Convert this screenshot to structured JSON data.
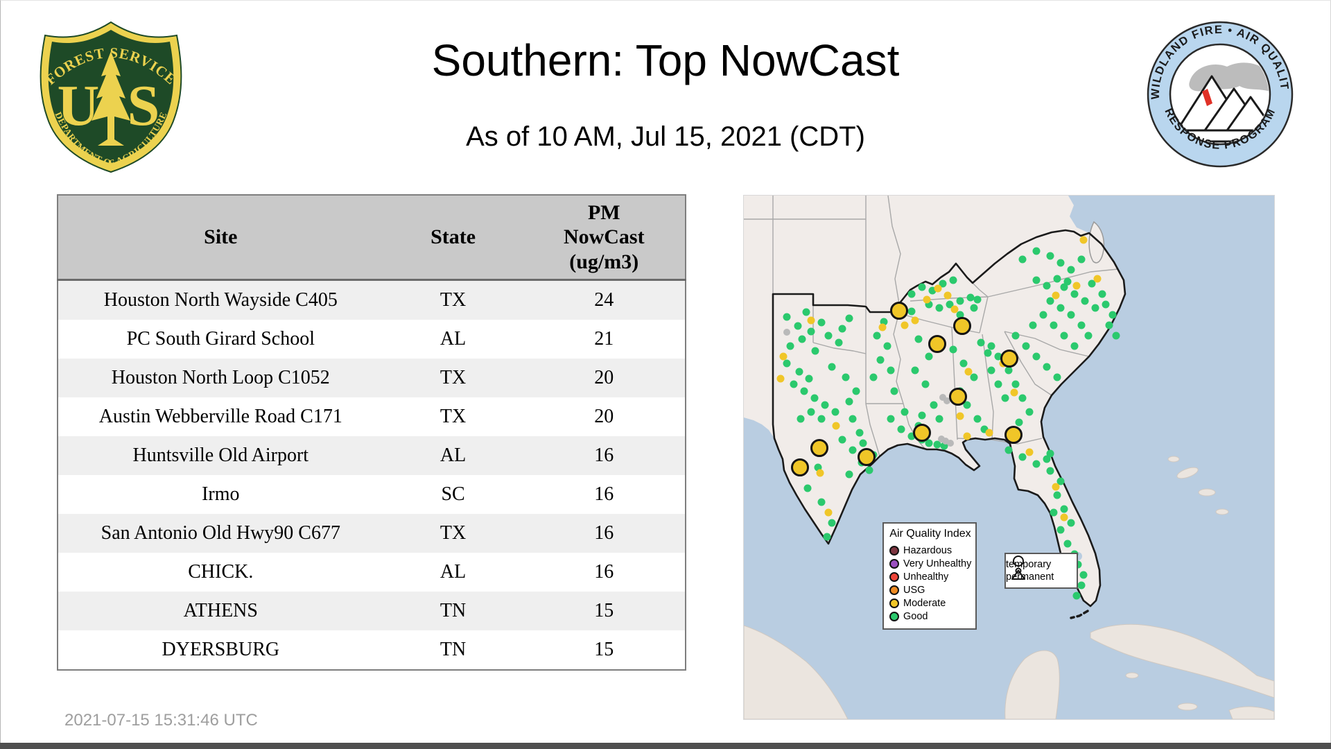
{
  "header": {
    "title": "Southern: Top NowCast",
    "subtitle": "As of 10 AM, Jul 15, 2021 (CDT)",
    "fs_logo": {
      "arc_top": "FOREST SERVICE",
      "letter_left": "U",
      "letter_right": "S",
      "arc_bottom": "DEPARTMENT OF AGRICULTURE",
      "green": "#1e4a27",
      "gold": "#ecd24f"
    },
    "wf_logo": {
      "arc_top": "WILDLAND FIRE • AIR QUALITY",
      "arc_bottom": "RESPONSE PROGRAM",
      "ring_color": "#b9d6ee",
      "flame_color": "#e03127",
      "smoke_color": "#bcbcbc"
    }
  },
  "table": {
    "columns": {
      "site": "Site",
      "state": "State",
      "value": "PM\nNowCast\n(ug/m3)"
    },
    "rows": [
      {
        "site": "Houston North Wayside C405",
        "state": "TX",
        "value": "24"
      },
      {
        "site": "PC South Girard School",
        "state": "AL",
        "value": "21"
      },
      {
        "site": "Houston North Loop C1052",
        "state": "TX",
        "value": "20"
      },
      {
        "site": "Austin Webberville Road C171",
        "state": "TX",
        "value": "20"
      },
      {
        "site": "Huntsville Old Airport",
        "state": "AL",
        "value": "16"
      },
      {
        "site": "Irmo",
        "state": "SC",
        "value": "16"
      },
      {
        "site": "San Antonio Old Hwy90 C677",
        "state": "TX",
        "value": "16"
      },
      {
        "site": "CHICK.",
        "state": "AL",
        "value": "16"
      },
      {
        "site": "ATHENS",
        "state": "TN",
        "value": "15"
      },
      {
        "site": "DYERSBURG",
        "state": "TN",
        "value": "15"
      }
    ]
  },
  "footer": {
    "timestamp": "2021-07-15 15:31:46 UTC"
  },
  "map": {
    "colors": {
      "water": "#b9cde1",
      "land": "#f1ece9",
      "foreign_land": "#ebe5df",
      "state_line": "#a8a8a8",
      "region_line": "#1b1b1b",
      "good": "#2bc96d",
      "moderate": "#f0c628",
      "no_data": "#b9b9b9"
    },
    "legend": {
      "title": "Air Quality Index",
      "items": [
        {
          "label": "Hazardous",
          "color": "#7d3540"
        },
        {
          "label": "Very Unhealthy",
          "color": "#9b4fc0"
        },
        {
          "label": "Unhealthy",
          "color": "#ee4438"
        },
        {
          "label": "USG",
          "color": "#ee8b23"
        },
        {
          "label": "Moderate",
          "color": "#f0c628"
        },
        {
          "label": "Good",
          "color": "#2bc96d"
        }
      ]
    },
    "marker_legend": {
      "temporary": "temporary",
      "permanent": "permanent"
    },
    "markers": {
      "good": [
        [
          62,
          175
        ],
        [
          78,
          188
        ],
        [
          90,
          168
        ],
        [
          97,
          196
        ],
        [
          112,
          183
        ],
        [
          122,
          202
        ],
        [
          137,
          212
        ],
        [
          84,
          207
        ],
        [
          67,
          217
        ],
        [
          103,
          224
        ],
        [
          142,
          192
        ],
        [
          152,
          177
        ],
        [
          62,
          242
        ],
        [
          80,
          254
        ],
        [
          94,
          264
        ],
        [
          72,
          272
        ],
        [
          87,
          282
        ],
        [
          102,
          292
        ],
        [
          117,
          302
        ],
        [
          97,
          312
        ],
        [
          82,
          322
        ],
        [
          112,
          322
        ],
        [
          132,
          312
        ],
        [
          152,
          297
        ],
        [
          162,
          282
        ],
        [
          147,
          262
        ],
        [
          127,
          247
        ],
        [
          157,
          322
        ],
        [
          167,
          342
        ],
        [
          172,
          357
        ],
        [
          157,
          367
        ],
        [
          142,
          352
        ],
        [
          107,
          392
        ],
        [
          92,
          422
        ],
        [
          112,
          442
        ],
        [
          127,
          472
        ],
        [
          120,
          492
        ],
        [
          152,
          402
        ],
        [
          170,
          385
        ],
        [
          181,
          396
        ],
        [
          187,
          374
        ],
        [
          192,
          202
        ],
        [
          207,
          217
        ],
        [
          197,
          237
        ],
        [
          212,
          252
        ],
        [
          187,
          262
        ],
        [
          217,
          282
        ],
        [
          202,
          182
        ],
        [
          212,
          322
        ],
        [
          227,
          337
        ],
        [
          242,
          347
        ],
        [
          257,
          352
        ],
        [
          267,
          357
        ],
        [
          279,
          359
        ],
        [
          289,
          361
        ],
        [
          232,
          312
        ],
        [
          252,
          332
        ],
        [
          247,
          252
        ],
        [
          262,
          272
        ],
        [
          274,
          302
        ],
        [
          257,
          317
        ],
        [
          267,
          232
        ],
        [
          282,
          322
        ],
        [
          252,
          207
        ],
        [
          242,
          142
        ],
        [
          257,
          132
        ],
        [
          272,
          137
        ],
        [
          287,
          127
        ],
        [
          302,
          122
        ],
        [
          267,
          157
        ],
        [
          282,
          162
        ],
        [
          297,
          157
        ],
        [
          312,
          152
        ],
        [
          327,
          147
        ],
        [
          242,
          167
        ],
        [
          312,
          172
        ],
        [
          332,
          162
        ],
        [
          337,
          150
        ],
        [
          302,
          222
        ],
        [
          317,
          242
        ],
        [
          332,
          262
        ],
        [
          312,
          282
        ],
        [
          322,
          302
        ],
        [
          337,
          322
        ],
        [
          347,
          337
        ],
        [
          357,
          252
        ],
        [
          367,
          272
        ],
        [
          377,
          292
        ],
        [
          352,
          227
        ],
        [
          367,
          232
        ],
        [
          382,
          252
        ],
        [
          392,
          272
        ],
        [
          402,
          292
        ],
        [
          412,
          312
        ],
        [
          397,
          327
        ],
        [
          342,
          212
        ],
        [
          357,
          217
        ],
        [
          392,
          202
        ],
        [
          407,
          217
        ],
        [
          422,
          232
        ],
        [
          437,
          247
        ],
        [
          452,
          262
        ],
        [
          417,
          187
        ],
        [
          432,
          172
        ],
        [
          447,
          187
        ],
        [
          462,
          202
        ],
        [
          477,
          217
        ],
        [
          442,
          152
        ],
        [
          457,
          162
        ],
        [
          472,
          172
        ],
        [
          487,
          187
        ],
        [
          497,
          202
        ],
        [
          462,
          132
        ],
        [
          477,
          142
        ],
        [
          492,
          152
        ],
        [
          507,
          162
        ],
        [
          422,
          122
        ],
        [
          437,
          130
        ],
        [
          452,
          120
        ],
        [
          467,
          124
        ],
        [
          502,
          127
        ],
        [
          517,
          142
        ],
        [
          522,
          157
        ],
        [
          532,
          172
        ],
        [
          402,
          92
        ],
        [
          422,
          80
        ],
        [
          442,
          87
        ],
        [
          457,
          97
        ],
        [
          472,
          107
        ],
        [
          487,
          92
        ],
        [
          527,
          187
        ],
        [
          537,
          202
        ],
        [
          382,
          367
        ],
        [
          402,
          377
        ],
        [
          422,
          387
        ],
        [
          442,
          397
        ],
        [
          457,
          412
        ],
        [
          452,
          432
        ],
        [
          462,
          452
        ],
        [
          472,
          472
        ],
        [
          457,
          482
        ],
        [
          467,
          502
        ],
        [
          477,
          517
        ],
        [
          482,
          532
        ],
        [
          490,
          547
        ],
        [
          487,
          562
        ],
        [
          480,
          577
        ],
        [
          472,
          547
        ],
        [
          447,
          457
        ],
        [
          437,
          380
        ],
        [
          442,
          372
        ]
      ],
      "moderate_small": [
        [
          97,
          180
        ],
        [
          57,
          232
        ],
        [
          53,
          264
        ],
        [
          133,
          332
        ],
        [
          110,
          400
        ],
        [
          122,
          457
        ],
        [
          200,
          190
        ],
        [
          232,
          187
        ],
        [
          247,
          180
        ],
        [
          264,
          150
        ],
        [
          280,
          134
        ],
        [
          294,
          144
        ],
        [
          324,
          254
        ],
        [
          312,
          318
        ],
        [
          322,
          347
        ],
        [
          354,
          342
        ],
        [
          374,
          242
        ],
        [
          390,
          284
        ],
        [
          450,
          144
        ],
        [
          480,
          130
        ],
        [
          510,
          120
        ],
        [
          490,
          64
        ],
        [
          304,
          164
        ],
        [
          412,
          370
        ],
        [
          450,
          420
        ],
        [
          462,
          464
        ]
      ],
      "no_data": [
        [
          291,
          354
        ],
        [
          298,
          357
        ],
        [
          285,
          351
        ],
        [
          62,
          197
        ],
        [
          287,
          291
        ],
        [
          293,
          296
        ]
      ],
      "moderate_large": [
        [
          224,
          166
        ],
        [
          315,
          188
        ],
        [
          279,
          214
        ],
        [
          383,
          235
        ],
        [
          309,
          290
        ],
        [
          389,
          345
        ],
        [
          257,
          342
        ],
        [
          81,
          392
        ],
        [
          109,
          364
        ],
        [
          177,
          377
        ]
      ]
    }
  }
}
